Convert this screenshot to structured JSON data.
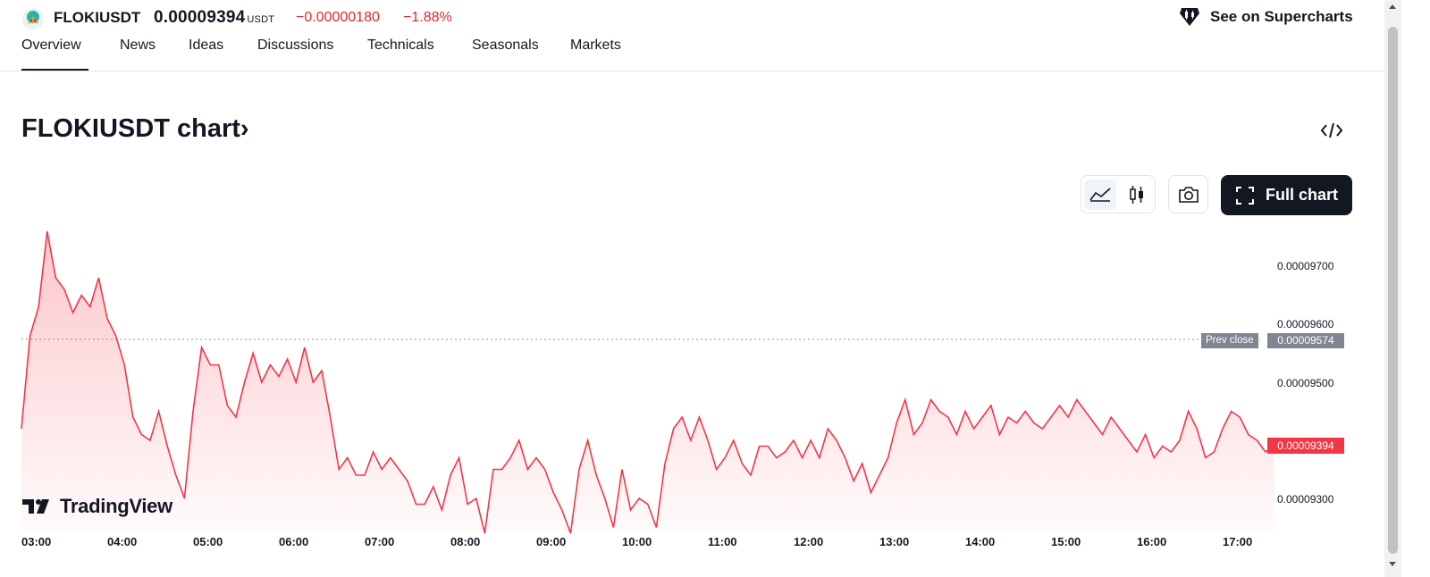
{
  "header": {
    "symbol": "FLOKIUSDT",
    "price": "0.00009394",
    "price_unit": "USDT",
    "change": "−0.00000180",
    "change_percent": "−1.88%",
    "supercharts_label": "See on Supercharts",
    "change_color": "#e0282d"
  },
  "tabs": [
    {
      "label": "Overview",
      "active": true
    },
    {
      "label": "News"
    },
    {
      "label": "Ideas"
    },
    {
      "label": "Discussions"
    },
    {
      "label": "Technicals"
    },
    {
      "label": "Seasonals"
    },
    {
      "label": "Markets"
    }
  ],
  "section": {
    "title": "FLOKIUSDT chart",
    "title_chevron": "›",
    "embed_icon": "code-icon"
  },
  "toolbar": {
    "area_style_icon": "area-chart-icon",
    "candle_style_icon": "candlestick-icon",
    "snapshot_icon": "camera-icon",
    "full_chart_label": "Full chart",
    "full_chart_icon": "fullscreen-icon"
  },
  "branding": {
    "tradingview_label": "TradingView"
  },
  "chart_data": {
    "type": "area",
    "line_color": "#f23645",
    "x_tick_labels": [
      "03:00",
      "04:00",
      "05:00",
      "06:00",
      "07:00",
      "08:00",
      "09:00",
      "10:00",
      "11:00",
      "12:00",
      "13:00",
      "14:00",
      "15:00",
      "16:00",
      "17:00"
    ],
    "y_tick_labels": [
      "0.00009700",
      "0.00009600",
      "0.00009500",
      "0.00009300"
    ],
    "ylim": [
      9.24e-05,
      9.79e-05
    ],
    "prev_close_label": "Prev close",
    "prev_close": "0.00009574",
    "last_price": "0.00009394",
    "series": [
      {
        "x_hours": [
          3.0,
          3.1,
          3.2,
          3.3,
          3.4,
          3.5,
          3.6,
          3.7,
          3.8,
          3.9,
          4.0,
          4.1,
          4.2,
          4.3,
          4.4,
          4.5,
          4.6,
          4.7,
          4.8,
          4.9,
          5.0,
          5.1,
          5.2,
          5.3,
          5.4,
          5.5,
          5.6,
          5.7,
          5.8,
          5.9,
          6.0,
          6.1,
          6.2,
          6.3,
          6.4,
          6.5,
          6.6,
          6.7,
          6.8,
          6.9,
          7.0,
          7.1,
          7.2,
          7.3,
          7.4,
          7.5,
          7.6,
          7.7,
          7.8,
          7.9,
          8.0,
          8.1,
          8.2,
          8.3,
          8.4,
          8.5,
          8.6,
          8.7,
          8.8,
          8.9,
          9.0,
          9.1,
          9.2,
          9.3,
          9.4,
          9.5,
          9.6,
          9.7,
          9.8,
          9.9,
          10.0,
          10.1,
          10.2,
          10.3,
          10.4,
          10.5,
          10.6,
          10.7,
          10.8,
          10.9,
          11.0,
          11.1,
          11.2,
          11.3,
          11.4,
          11.5,
          11.6,
          11.7,
          11.8,
          11.9,
          12.0,
          12.1,
          12.2,
          12.3,
          12.4,
          12.5,
          12.6,
          12.7,
          12.8,
          12.9,
          13.0,
          13.1,
          13.2,
          13.3,
          13.4,
          13.5,
          13.6,
          13.7,
          13.8,
          13.9,
          14.0,
          14.1,
          14.2,
          14.3,
          14.4,
          14.5,
          14.6,
          14.7,
          14.8,
          14.9,
          15.0,
          15.1,
          15.2,
          15.3,
          15.4,
          15.5,
          15.6,
          15.7,
          15.8,
          15.9,
          16.0,
          16.1,
          16.2,
          16.3,
          16.4,
          16.5,
          16.6,
          16.7,
          16.8,
          16.9,
          17.0,
          17.1,
          17.2,
          17.3,
          17.4,
          17.5,
          17.6
        ],
        "y": [
          9.42e-05,
          9.58e-05,
          9.63e-05,
          9.76e-05,
          9.68e-05,
          9.66e-05,
          9.62e-05,
          9.65e-05,
          9.63e-05,
          9.68e-05,
          9.61e-05,
          9.58e-05,
          9.53e-05,
          9.44e-05,
          9.41e-05,
          9.4e-05,
          9.45e-05,
          9.39e-05,
          9.34e-05,
          9.3e-05,
          9.45e-05,
          9.56e-05,
          9.53e-05,
          9.53e-05,
          9.46e-05,
          9.44e-05,
          9.5e-05,
          9.55e-05,
          9.5e-05,
          9.53e-05,
          9.51e-05,
          9.54e-05,
          9.5e-05,
          9.56e-05,
          9.5e-05,
          9.52e-05,
          9.44e-05,
          9.35e-05,
          9.37e-05,
          9.34e-05,
          9.34e-05,
          9.38e-05,
          9.35e-05,
          9.37e-05,
          9.35e-05,
          9.33e-05,
          9.29e-05,
          9.29e-05,
          9.32e-05,
          9.28e-05,
          9.34e-05,
          9.37e-05,
          9.29e-05,
          9.3e-05,
          9.24e-05,
          9.35e-05,
          9.35e-05,
          9.37e-05,
          9.4e-05,
          9.35e-05,
          9.37e-05,
          9.35e-05,
          9.31e-05,
          9.28e-05,
          9.24e-05,
          9.35e-05,
          9.4e-05,
          9.34e-05,
          9.3e-05,
          9.25e-05,
          9.35e-05,
          9.28e-05,
          9.3e-05,
          9.29e-05,
          9.25e-05,
          9.36e-05,
          9.42e-05,
          9.44e-05,
          9.4e-05,
          9.44e-05,
          9.4e-05,
          9.35e-05,
          9.37e-05,
          9.4e-05,
          9.36e-05,
          9.34e-05,
          9.39e-05,
          9.39e-05,
          9.37e-05,
          9.38e-05,
          9.4e-05,
          9.37e-05,
          9.4e-05,
          9.37e-05,
          9.42e-05,
          9.4e-05,
          9.37e-05,
          9.33e-05,
          9.36e-05,
          9.31e-05,
          9.34e-05,
          9.37e-05,
          9.43e-05,
          9.47e-05,
          9.41e-05,
          9.43e-05,
          9.47e-05,
          9.45e-05,
          9.44e-05,
          9.41e-05,
          9.45e-05,
          9.42e-05,
          9.44e-05,
          9.46e-05,
          9.41e-05,
          9.44e-05,
          9.43e-05,
          9.45e-05,
          9.43e-05,
          9.42e-05,
          9.44e-05,
          9.46e-05,
          9.44e-05,
          9.47e-05,
          9.45e-05,
          9.43e-05,
          9.41e-05,
          9.44e-05,
          9.42e-05,
          9.4e-05,
          9.38e-05,
          9.41e-05,
          9.37e-05,
          9.39e-05,
          9.38e-05,
          9.4e-05,
          9.45e-05,
          9.42e-05,
          9.37e-05,
          9.38e-05,
          9.42e-05,
          9.45e-05,
          9.44e-05,
          9.41e-05,
          9.4e-05,
          9.38e-05,
          9.39e-05
        ]
      }
    ]
  }
}
